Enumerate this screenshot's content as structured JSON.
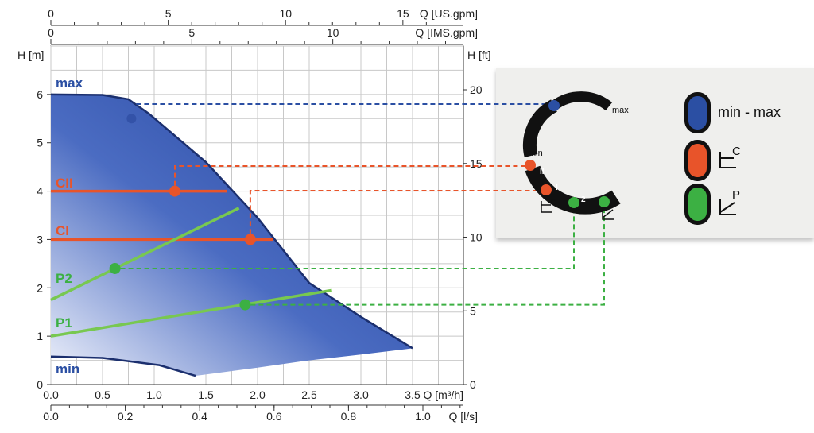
{
  "chart_data": {
    "type": "area",
    "axes": {
      "bottom_primary": {
        "label": "Q [m³/h]",
        "range": [
          0,
          3.5
        ],
        "ticks": [
          "0.0",
          "0.5",
          "1.0",
          "1.5",
          "2.0",
          "2.5",
          "3.0",
          "3.5"
        ]
      },
      "bottom_secondary": {
        "label": "Q [l/s]",
        "ticks": [
          "0.0",
          "0.2",
          "0.4",
          "0.6",
          "0.8",
          "1.0"
        ],
        "tick_values_m3h": [
          0,
          0.72,
          1.44,
          2.16,
          2.88,
          3.6
        ]
      },
      "top_us": {
        "label": "Q [US.gpm]",
        "ticks": [
          "0",
          "5",
          "10",
          "15"
        ],
        "tick_values_m3h": [
          0,
          1.136,
          2.271,
          3.407
        ]
      },
      "top_ims": {
        "label": "Q [IMS.gpm]",
        "ticks": [
          "0",
          "5",
          "10"
        ],
        "tick_values_m3h": [
          0,
          1.364,
          2.728
        ]
      },
      "left": {
        "label": "H [m]",
        "range": [
          0,
          7
        ],
        "ticks": [
          "0",
          "1",
          "2",
          "3",
          "4",
          "5",
          "6"
        ]
      },
      "right": {
        "label": "H [ft]",
        "ticks": [
          "0",
          "5",
          "10",
          "15",
          "20"
        ],
        "tick_values_m": [
          0,
          1.524,
          3.048,
          4.572,
          6.096
        ]
      },
      "grid": true
    },
    "envelope": {
      "max_curve": [
        [
          0,
          6.0
        ],
        [
          0.5,
          5.99
        ],
        [
          0.75,
          5.9
        ],
        [
          0.95,
          5.6
        ],
        [
          1.5,
          4.6
        ],
        [
          2.0,
          3.45
        ],
        [
          2.5,
          2.1
        ],
        [
          3.0,
          1.4
        ],
        [
          3.5,
          0.75
        ]
      ],
      "min_curve": [
        [
          0,
          0.58
        ],
        [
          0.5,
          0.55
        ],
        [
          1.05,
          0.4
        ],
        [
          1.4,
          0.18
        ],
        [
          2.0,
          0.35
        ],
        [
          2.5,
          0.5
        ],
        [
          3.0,
          0.62
        ],
        [
          3.5,
          0.75
        ]
      ]
    },
    "series": [
      {
        "name": "max",
        "color": "#2b4fa3",
        "label_point": [
          0,
          6.25
        ]
      },
      {
        "name": "min",
        "color": "#2b4fa3",
        "label_point": [
          0,
          0.3
        ]
      },
      {
        "name": "CII",
        "color": "#e8542a",
        "type": "constant_pressure",
        "points": [
          [
            0,
            4.0
          ],
          [
            1.7,
            4.0
          ]
        ],
        "marker": [
          1.2,
          4.0
        ]
      },
      {
        "name": "CI",
        "color": "#e8542a",
        "type": "constant_pressure",
        "points": [
          [
            0,
            3.0
          ],
          [
            2.15,
            3.0
          ]
        ],
        "marker": [
          1.93,
          3.0
        ]
      },
      {
        "name": "P2",
        "color": "#78c850",
        "type": "proportional_pressure",
        "points": [
          [
            0,
            1.75
          ],
          [
            1.82,
            3.65
          ]
        ],
        "marker": [
          0.62,
          2.4
        ]
      },
      {
        "name": "P1",
        "color": "#78c850",
        "type": "proportional_pressure",
        "points": [
          [
            0,
            1.0
          ],
          [
            2.72,
            1.95
          ]
        ],
        "marker": [
          1.88,
          1.65
        ]
      }
    ]
  },
  "panel": {
    "dial_labels": {
      "max": "max",
      "min": "min",
      "ii": "II",
      "i": "I",
      "two": "2",
      "c_small": "C",
      "p_small": "P"
    },
    "legend": [
      {
        "text": "min - max",
        "color": "#2b4fa3"
      },
      {
        "text": "C",
        "color": "#e8542a"
      },
      {
        "text": "P",
        "color": "#3cb043"
      }
    ]
  }
}
